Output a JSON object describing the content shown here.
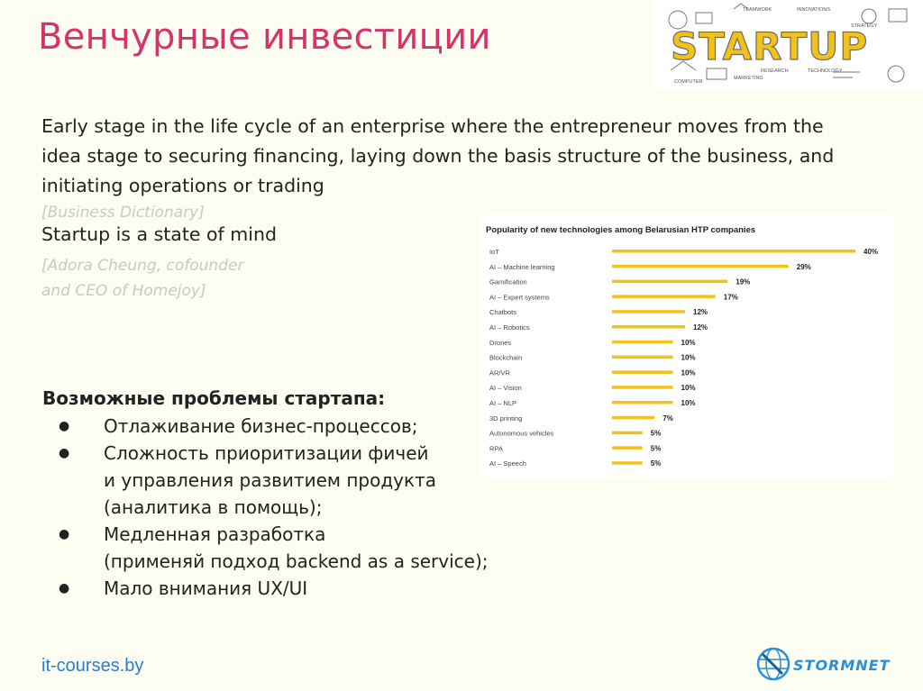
{
  "title": "Венчурные инвестиции",
  "logo": {
    "word": "STARTUP",
    "tags": [
      "TEAMWORK",
      "INNOVATIONS",
      "STRATEGY",
      "RESEARCH",
      "MARKETING",
      "TECHNOLOGY",
      "COMPUTER"
    ],
    "colors": {
      "accent": "#f2c21b",
      "outline": "#555555"
    }
  },
  "definition": {
    "text": "Early stage in the life cycle of an enterprise where the entrepreneur moves from the idea stage to securing financing, laying down the basis structure of the business, and initiating operations or trading",
    "citation": "[Business Dictionary]"
  },
  "quote": {
    "text": "Startup is a state of mind",
    "citation_line1": "[Adora Cheung, cofounder",
    "citation_line2": "and CEO of Homejoy]"
  },
  "problems": {
    "heading": "Возможные проблемы стартапа:",
    "items": [
      {
        "line1": "Отлаживание бизнес-процессов;",
        "line2": "",
        "line3": ""
      },
      {
        "line1": "Сложность приоритизации фичей",
        "line2": "и управления развитием продукта",
        "line3": "(аналитика в помощь);"
      },
      {
        "line1": "Медленная разработка",
        "line2": "(применяй подход backend as a service);",
        "line3": ""
      },
      {
        "line1": "Мало внимания UX/UI",
        "line2": "",
        "line3": ""
      }
    ],
    "bullet": "●"
  },
  "footer": {
    "link": "it-courses.by",
    "brand": "STORMNET"
  },
  "chart_data": {
    "type": "bar",
    "orientation": "horizontal",
    "title": "Popularity of new technologies among Belarusian HTP companies",
    "categories": [
      "IoT",
      "AI – Machine learning",
      "Gamification",
      "AI – Expert systems",
      "Chatbots",
      "AI – Robotics",
      "Drones",
      "Blockchain",
      "AR/VR",
      "AI – Vision",
      "AI – NLP",
      "3D printing",
      "Autonomous vehicles",
      "RPA",
      "AI – Speech"
    ],
    "values": [
      40,
      29,
      19,
      17,
      12,
      12,
      10,
      10,
      10,
      10,
      10,
      7,
      5,
      5,
      5
    ],
    "value_suffix": "%",
    "xlim": [
      0,
      40
    ],
    "bar_color": "#f2c21b",
    "grid": false,
    "legend": "none"
  }
}
